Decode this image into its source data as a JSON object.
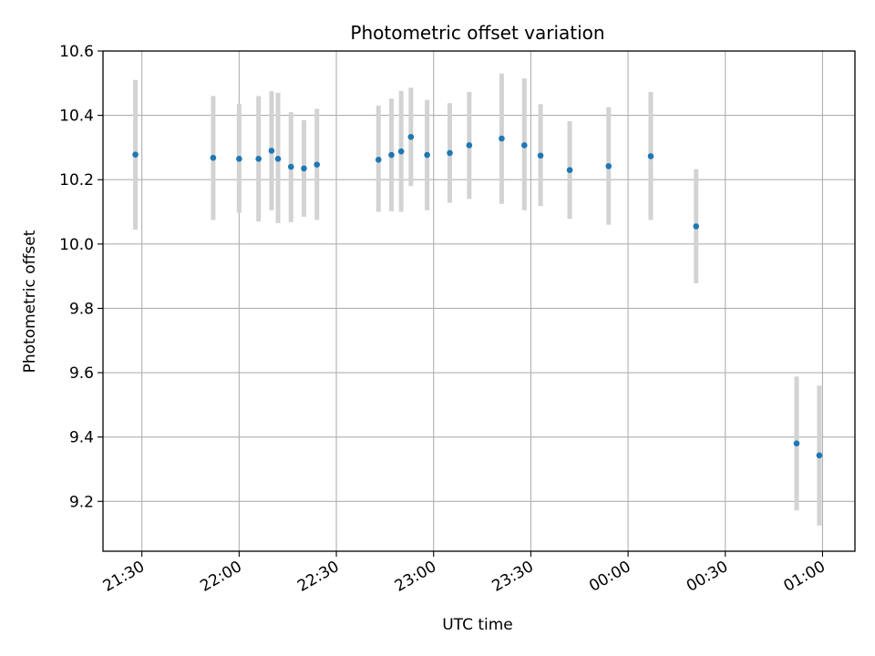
{
  "chart_data": {
    "type": "scatter",
    "title": "Photometric offset variation",
    "xlabel": "UTC time",
    "ylabel": "Photometric offset",
    "grid": true,
    "xlim": [
      "21:18",
      "01:10"
    ],
    "ylim": [
      9.045,
      10.6
    ],
    "x_ticks": [
      "21:30",
      "22:00",
      "22:30",
      "23:00",
      "23:30",
      "00:00",
      "00:30",
      "01:00"
    ],
    "y_ticks": [
      "9.2",
      "9.4",
      "9.6",
      "9.8",
      "10.0",
      "10.2",
      "10.4",
      "10.6"
    ],
    "colors": {
      "point": "#1f77b4",
      "errorbar": "#d3d3d3",
      "grid": "#b0b0b0"
    },
    "series": [
      {
        "points": [
          {
            "x": "21:28",
            "y": 10.278,
            "ylo": 10.045,
            "yhi": 10.51
          },
          {
            "x": "21:52",
            "y": 10.268,
            "ylo": 10.075,
            "yhi": 10.46
          },
          {
            "x": "22:00",
            "y": 10.265,
            "ylo": 10.097,
            "yhi": 10.435
          },
          {
            "x": "22:06",
            "y": 10.265,
            "ylo": 10.07,
            "yhi": 10.46
          },
          {
            "x": "22:10",
            "y": 10.29,
            "ylo": 10.105,
            "yhi": 10.475
          },
          {
            "x": "22:12",
            "y": 10.265,
            "ylo": 10.065,
            "yhi": 10.47
          },
          {
            "x": "22:16",
            "y": 10.24,
            "ylo": 10.068,
            "yhi": 10.41
          },
          {
            "x": "22:20",
            "y": 10.235,
            "ylo": 10.085,
            "yhi": 10.385
          },
          {
            "x": "22:24",
            "y": 10.247,
            "ylo": 10.075,
            "yhi": 10.42
          },
          {
            "x": "22:43",
            "y": 10.262,
            "ylo": 10.1,
            "yhi": 10.43
          },
          {
            "x": "22:47",
            "y": 10.277,
            "ylo": 10.102,
            "yhi": 10.452
          },
          {
            "x": "22:50",
            "y": 10.288,
            "ylo": 10.1,
            "yhi": 10.476
          },
          {
            "x": "22:53",
            "y": 10.333,
            "ylo": 10.18,
            "yhi": 10.486
          },
          {
            "x": "22:58",
            "y": 10.277,
            "ylo": 10.105,
            "yhi": 10.448
          },
          {
            "x": "23:05",
            "y": 10.283,
            "ylo": 10.128,
            "yhi": 10.438
          },
          {
            "x": "23:11",
            "y": 10.307,
            "ylo": 10.14,
            "yhi": 10.473
          },
          {
            "x": "23:21",
            "y": 10.328,
            "ylo": 10.125,
            "yhi": 10.53
          },
          {
            "x": "23:28",
            "y": 10.307,
            "ylo": 10.105,
            "yhi": 10.515
          },
          {
            "x": "23:33",
            "y": 10.275,
            "ylo": 10.118,
            "yhi": 10.435
          },
          {
            "x": "23:42",
            "y": 10.23,
            "ylo": 10.078,
            "yhi": 10.382
          },
          {
            "x": "23:54",
            "y": 10.242,
            "ylo": 10.06,
            "yhi": 10.425
          },
          {
            "x": "00:07",
            "y": 10.273,
            "ylo": 10.075,
            "yhi": 10.473
          },
          {
            "x": "00:21",
            "y": 10.055,
            "ylo": 9.878,
            "yhi": 10.233
          },
          {
            "x": "00:52",
            "y": 9.38,
            "ylo": 9.172,
            "yhi": 9.588
          },
          {
            "x": "00:59",
            "y": 9.343,
            "ylo": 9.125,
            "yhi": 9.56
          }
        ]
      }
    ]
  }
}
